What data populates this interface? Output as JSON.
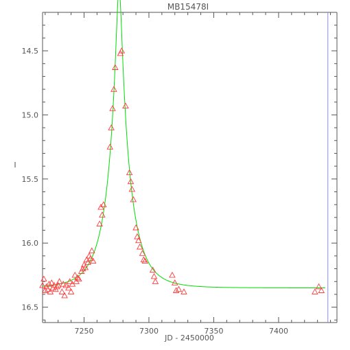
{
  "chart_data": {
    "type": "scatter",
    "title": "MB15478I",
    "xlabel": "JD - 2450000",
    "ylabel": "I",
    "xlim": [
      7218,
      7445
    ],
    "ylim": [
      16.62,
      14.2
    ],
    "y_inverted": true,
    "grid": false,
    "xticks": [
      7250,
      7300,
      7350,
      7400
    ],
    "xtick_labels": [
      "7250",
      "7300",
      "7350",
      "7400"
    ],
    "yticks": [
      14.5,
      15.0,
      15.5,
      16.0,
      16.5
    ],
    "ytick_labels": [
      "14.5",
      "15.0",
      "15.5",
      "16.0",
      "16.5"
    ],
    "marker": "triangle",
    "colors": {
      "points": "#ff3a3a",
      "model": "#00dd00",
      "axes": "#555555",
      "marker_line": "#8888ff"
    },
    "vertical_marker_x": 7438,
    "model": {
      "t0": 7277,
      "tE": 18,
      "u0": 0.117,
      "baseline_mag": 16.35
    },
    "series": [
      {
        "x": [
          7218,
          7219,
          7220,
          7221,
          7222,
          7223,
          7224,
          7225,
          7226,
          7227,
          7228,
          7229,
          7230,
          7231,
          7233,
          7234,
          7235,
          7236,
          7238,
          7239,
          7240,
          7241,
          7243,
          7244,
          7245,
          7246,
          7248,
          7249,
          7250,
          7251,
          7252,
          7253,
          7254,
          7255,
          7256,
          7257,
          7262,
          7263,
          7264,
          7265,
          7270,
          7271,
          7272,
          7273,
          7274,
          7278,
          7279,
          7282,
          7285,
          7286,
          7287,
          7288,
          7290,
          7291,
          7292,
          7293,
          7295,
          7296,
          7297,
          7303,
          7304,
          7305,
          7318,
          7320,
          7321,
          7323,
          7327,
          7428,
          7431,
          7433
        ],
        "y": [
          16.33,
          16.28,
          16.37,
          16.34,
          16.36,
          16.32,
          16.38,
          16.31,
          16.35,
          16.33,
          16.36,
          16.34,
          16.33,
          16.3,
          16.38,
          16.32,
          16.41,
          16.33,
          16.35,
          16.3,
          16.38,
          16.32,
          16.25,
          16.3,
          16.27,
          16.28,
          16.22,
          16.2,
          16.17,
          16.19,
          16.13,
          16.15,
          16.1,
          16.12,
          16.06,
          16.14,
          15.85,
          15.72,
          15.78,
          15.7,
          15.25,
          15.1,
          14.95,
          14.8,
          14.63,
          14.52,
          14.5,
          14.93,
          15.45,
          15.52,
          15.58,
          15.66,
          15.88,
          15.95,
          15.98,
          16.03,
          16.08,
          16.13,
          16.14,
          16.21,
          16.26,
          16.3,
          16.25,
          16.31,
          16.37,
          16.36,
          16.38,
          16.38,
          16.34,
          16.37
        ]
      }
    ]
  }
}
